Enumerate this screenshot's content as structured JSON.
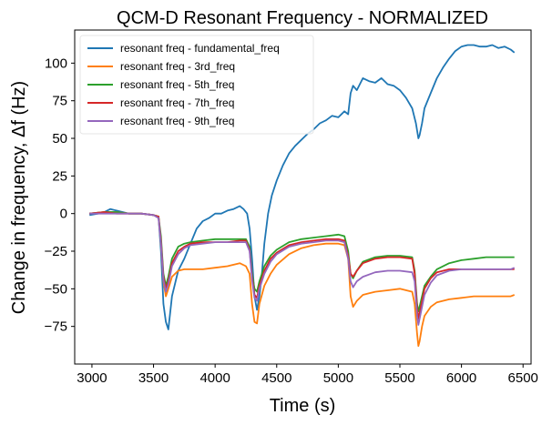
{
  "chart_data": {
    "type": "line",
    "title": "QCM-D Resonant Frequency - NORMALIZED",
    "xlabel": "Time (s)",
    "ylabel": "Change in frequency, Δf (Hz)",
    "xlim": [
      2860,
      6565
    ],
    "ylim": [
      -100,
      122
    ],
    "xticks": [
      3000,
      3500,
      4000,
      4500,
      5000,
      5500,
      6000,
      6500
    ],
    "yticks": [
      -75,
      -50,
      -25,
      0,
      25,
      50,
      75,
      100
    ],
    "ytick_labels": [
      "−75",
      "−50",
      "−25",
      "0",
      "25",
      "50",
      "75",
      "100"
    ],
    "grid": false,
    "legend_position": "upper-left",
    "series": [
      {
        "name": "resonant freq - fundamental_freq",
        "color": "#1f77b4",
        "x": [
          2980,
          3050,
          3100,
          3150,
          3200,
          3300,
          3400,
          3500,
          3540,
          3560,
          3580,
          3600,
          3620,
          3650,
          3700,
          3750,
          3800,
          3850,
          3900,
          3950,
          4000,
          4050,
          4100,
          4150,
          4200,
          4230,
          4260,
          4280,
          4300,
          4320,
          4340,
          4360,
          4380,
          4400,
          4430,
          4460,
          4500,
          4550,
          4600,
          4650,
          4700,
          4750,
          4800,
          4850,
          4900,
          4950,
          5000,
          5050,
          5080,
          5100,
          5120,
          5150,
          5200,
          5250,
          5300,
          5350,
          5400,
          5450,
          5500,
          5550,
          5600,
          5630,
          5650,
          5660,
          5680,
          5700,
          5750,
          5800,
          5850,
          5900,
          5950,
          6000,
          6050,
          6100,
          6150,
          6200,
          6250,
          6300,
          6350,
          6400,
          6430
        ],
        "y": [
          -1,
          0,
          1,
          3,
          2,
          0,
          0,
          -1,
          -2,
          -25,
          -60,
          -72,
          -77,
          -55,
          -38,
          -30,
          -20,
          -10,
          -5,
          -3,
          0,
          0,
          2,
          3,
          5,
          3,
          0,
          -10,
          -30,
          -55,
          -64,
          -55,
          -40,
          -20,
          0,
          12,
          22,
          32,
          40,
          45,
          49,
          53,
          56,
          60,
          62,
          65,
          64,
          68,
          66,
          80,
          85,
          82,
          90,
          88,
          87,
          90,
          86,
          85,
          82,
          77,
          70,
          60,
          50,
          52,
          60,
          70,
          80,
          90,
          97,
          103,
          108,
          111,
          112,
          112,
          111,
          111,
          112,
          110,
          111,
          109,
          107
        ]
      },
      {
        "name": "resonant freq - 3rd_freq",
        "color": "#ff7f0e",
        "x": [
          2980,
          3100,
          3200,
          3300,
          3400,
          3500,
          3540,
          3560,
          3580,
          3600,
          3620,
          3650,
          3700,
          3750,
          3800,
          3900,
          4000,
          4100,
          4150,
          4200,
          4250,
          4280,
          4300,
          4320,
          4340,
          4360,
          4400,
          4450,
          4500,
          4600,
          4700,
          4800,
          4900,
          5000,
          5050,
          5080,
          5100,
          5120,
          5150,
          5200,
          5250,
          5300,
          5400,
          5500,
          5600,
          5620,
          5640,
          5650,
          5660,
          5680,
          5700,
          5750,
          5800,
          5900,
          6000,
          6100,
          6200,
          6300,
          6400,
          6430
        ],
        "y": [
          0,
          1,
          1,
          0,
          0,
          -1,
          -2,
          -20,
          -45,
          -55,
          -50,
          -42,
          -38,
          -37,
          -37,
          -37,
          -36,
          -35,
          -34,
          -33,
          -35,
          -40,
          -60,
          -72,
          -73,
          -60,
          -48,
          -40,
          -34,
          -27,
          -23,
          -21,
          -20,
          -20,
          -21,
          -30,
          -55,
          -62,
          -58,
          -54,
          -53,
          -52,
          -51,
          -50,
          -52,
          -60,
          -80,
          -88,
          -85,
          -75,
          -68,
          -62,
          -59,
          -57,
          -56,
          -55,
          -55,
          -55,
          -55,
          -54
        ]
      },
      {
        "name": "resonant freq - 5th_freq",
        "color": "#2ca02c",
        "x": [
          2980,
          3100,
          3200,
          3300,
          3400,
          3500,
          3540,
          3560,
          3580,
          3600,
          3620,
          3650,
          3700,
          3750,
          3800,
          3900,
          4000,
          4100,
          4200,
          4250,
          4280,
          4300,
          4320,
          4340,
          4360,
          4400,
          4450,
          4500,
          4600,
          4700,
          4800,
          4900,
          5000,
          5050,
          5080,
          5100,
          5120,
          5150,
          5200,
          5300,
          5400,
          5500,
          5600,
          5620,
          5640,
          5650,
          5660,
          5680,
          5700,
          5750,
          5800,
          5900,
          6000,
          6100,
          6200,
          6300,
          6400,
          6430
        ],
        "y": [
          0,
          1,
          1,
          0,
          0,
          -1,
          -2,
          -15,
          -40,
          -48,
          -42,
          -30,
          -22,
          -20,
          -19,
          -18,
          -17,
          -17,
          -17,
          -17,
          -22,
          -40,
          -50,
          -52,
          -45,
          -35,
          -28,
          -24,
          -19,
          -17,
          -16,
          -15,
          -14,
          -15,
          -25,
          -40,
          -43,
          -38,
          -32,
          -29,
          -28,
          -28,
          -29,
          -38,
          -60,
          -65,
          -62,
          -55,
          -48,
          -42,
          -37,
          -33,
          -31,
          -30,
          -29,
          -29,
          -29,
          -29
        ]
      },
      {
        "name": "resonant freq - 7th_freq",
        "color": "#d62728",
        "x": [
          2980,
          3100,
          3200,
          3300,
          3400,
          3500,
          3540,
          3560,
          3580,
          3600,
          3620,
          3650,
          3700,
          3750,
          3800,
          3900,
          4000,
          4100,
          4200,
          4250,
          4280,
          4300,
          4320,
          4340,
          4360,
          4400,
          4450,
          4500,
          4600,
          4700,
          4800,
          4900,
          5000,
          5050,
          5080,
          5100,
          5120,
          5150,
          5200,
          5300,
          5400,
          5500,
          5600,
          5620,
          5640,
          5650,
          5660,
          5680,
          5700,
          5750,
          5800,
          5900,
          6000,
          6100,
          6200,
          6300,
          6400,
          6430
        ],
        "y": [
          0,
          1,
          0,
          0,
          0,
          -1,
          -2,
          -18,
          -42,
          -50,
          -45,
          -33,
          -25,
          -22,
          -20,
          -19,
          -19,
          -19,
          -18,
          -18,
          -24,
          -42,
          -54,
          -56,
          -48,
          -38,
          -30,
          -26,
          -21,
          -19,
          -18,
          -17,
          -17,
          -18,
          -28,
          -40,
          -42,
          -38,
          -33,
          -30,
          -29,
          -29,
          -30,
          -40,
          -63,
          -70,
          -66,
          -58,
          -50,
          -43,
          -39,
          -37,
          -37,
          -37,
          -37,
          -37,
          -37,
          -37
        ]
      },
      {
        "name": "resonant freq - 9th_freq",
        "color": "#9467bd",
        "x": [
          2980,
          3100,
          3200,
          3300,
          3400,
          3500,
          3540,
          3560,
          3580,
          3600,
          3620,
          3650,
          3700,
          3750,
          3800,
          3900,
          4000,
          4100,
          4200,
          4250,
          4280,
          4300,
          4320,
          4340,
          4360,
          4400,
          4450,
          4500,
          4600,
          4700,
          4800,
          4900,
          5000,
          5050,
          5080,
          5100,
          5120,
          5150,
          5200,
          5300,
          5400,
          5500,
          5600,
          5620,
          5640,
          5650,
          5660,
          5680,
          5700,
          5750,
          5800,
          5900,
          6000,
          6100,
          6200,
          6300,
          6400,
          6430
        ],
        "y": [
          0,
          0,
          0,
          0,
          0,
          -1,
          -3,
          -20,
          -44,
          -52,
          -47,
          -35,
          -27,
          -23,
          -21,
          -20,
          -19,
          -19,
          -19,
          -19,
          -25,
          -44,
          -56,
          -58,
          -50,
          -40,
          -32,
          -27,
          -22,
          -20,
          -19,
          -18,
          -18,
          -19,
          -30,
          -45,
          -49,
          -45,
          -42,
          -39,
          -38,
          -38,
          -39,
          -45,
          -68,
          -74,
          -70,
          -62,
          -54,
          -46,
          -41,
          -38,
          -37,
          -37,
          -37,
          -37,
          -37,
          -36
        ]
      }
    ]
  }
}
